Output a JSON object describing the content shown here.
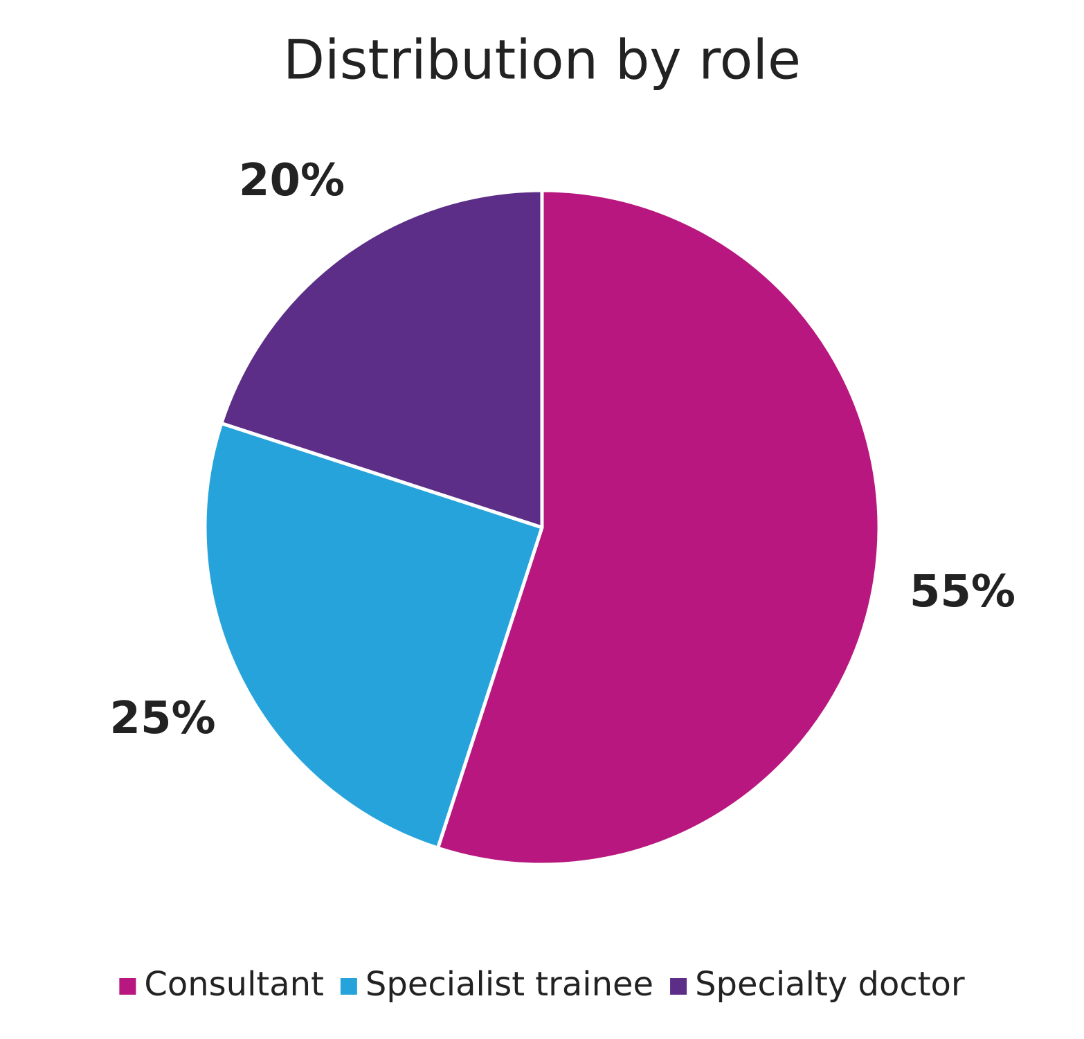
{
  "chart_data": {
    "type": "pie",
    "title": "Distribution by role",
    "categories": [
      "Consultant",
      "Specialist trainee",
      "Specialty doctor"
    ],
    "values": [
      55,
      25,
      20
    ],
    "value_labels": [
      "55%",
      "25%",
      "20%"
    ],
    "colors": [
      "#b8177f",
      "#27a3dc",
      "#5c2e87"
    ],
    "legend": "bottom"
  }
}
